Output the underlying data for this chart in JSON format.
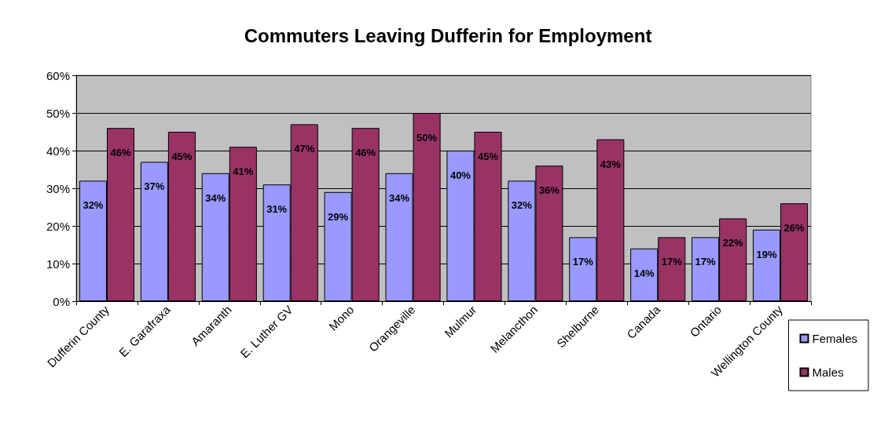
{
  "chart_data": {
    "type": "bar",
    "title": "Commuters Leaving Dufferin for Employment",
    "categories": [
      "Dufferin County",
      "E. Garafraxa",
      "Amaranth",
      "E. Luther GV",
      "Mono",
      "Orangeville",
      "Mulmur",
      "Melancthon",
      "Shelburne",
      "Canada",
      "Ontario",
      "Wellington County"
    ],
    "series": [
      {
        "name": "Females",
        "color": "#9999ff",
        "values": [
          32,
          37,
          34,
          31,
          29,
          34,
          40,
          32,
          17,
          14,
          17,
          19
        ],
        "value_labels": [
          "32%",
          "37%",
          "34%",
          "31%",
          "29%",
          "34%",
          "40%",
          "32%",
          "17%",
          "14%",
          "17%",
          "19%"
        ]
      },
      {
        "name": "Males",
        "color": "#993366",
        "values": [
          46,
          45,
          41,
          47,
          46,
          50,
          45,
          36,
          43,
          17,
          22,
          26
        ],
        "value_labels": [
          "46%",
          "45%",
          "41%",
          "47%",
          "46%",
          "50%",
          "45%",
          "36%",
          "43%",
          "17%",
          "22%",
          "26%"
        ]
      }
    ],
    "ylim": [
      0,
      60
    ],
    "yticks": [
      {
        "value": 0,
        "label": "0%"
      },
      {
        "value": 10,
        "label": "10%"
      },
      {
        "value": 20,
        "label": "20%"
      },
      {
        "value": 30,
        "label": "30%"
      },
      {
        "value": 40,
        "label": "40%"
      },
      {
        "value": 50,
        "label": "50%"
      },
      {
        "value": 60,
        "label": "60%"
      }
    ],
    "grid": "y",
    "legend": "right"
  }
}
